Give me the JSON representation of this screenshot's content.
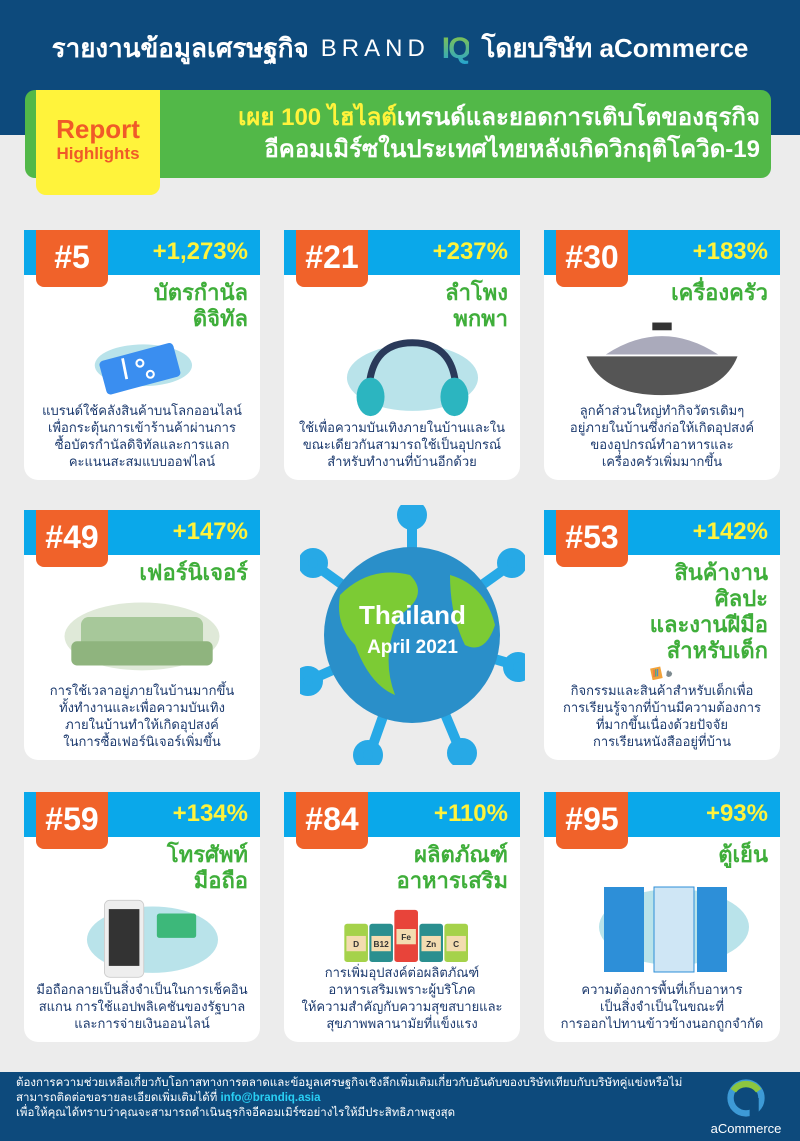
{
  "header": {
    "title_th": "รายงานข้อมูลเศรษฐกิจ",
    "brand": "BRAND",
    "brand_iq": "IQ",
    "by": "โดยบริษัท aCommerce"
  },
  "banner": {
    "report": "Report",
    "highlights": "Highlights",
    "line1_highlight": "เผย 100 ไฮไลต์",
    "line1_rest": "เทรนด์และยอดการเติบโตของธุรกิจ",
    "line2": "อีคอมเมิร์ซในประเทศไทยหลังเกิดวิกฤติโควิด-19"
  },
  "colors": {
    "navy": "#0d4a7c",
    "green": "#52b848",
    "orange": "#f0622a",
    "blue": "#0aa8ea",
    "yellow": "#fff33b"
  },
  "cards": [
    {
      "rank": "#5",
      "growth": "+1,273%",
      "title": "บัตรกำนัล\nดิจิทัล",
      "icon": "voucher-icon",
      "desc": "แบรนด์ใช้คลังสินค้าบนโลกออนไลน์\nเพื่อกระตุ้นการเข้าร้านค้าผ่านการ\nซื้อบัตรกำนัลดิจิทัลและการแลก\nคะแนนสะสมแบบออฟไลน์"
    },
    {
      "rank": "#21",
      "growth": "+237%",
      "title": "ลำโพง\nพกพา",
      "icon": "headphones-icon",
      "desc": "ใช้เพื่อความบันเทิงภายในบ้านและใน\nขณะเดียวกันสามารถใช้เป็นอุปกรณ์\nสำหรับทำงานที่บ้านอีกด้วย"
    },
    {
      "rank": "#30",
      "growth": "+183%",
      "title": "เครื่องครัว",
      "icon": "wok-icon",
      "desc": "ลูกค้าส่วนใหญ่ทำกิจวัตรเดิมๆ\nอยู่ภายในบ้านซึ่งก่อให้เกิดอุปสงค์\nของอุปกรณ์ทำอาหารและ\nเครื่องครัวเพิ่มมากขึ้น"
    },
    {
      "rank": "#49",
      "growth": "+147%",
      "title": "เฟอร์นิเจอร์",
      "icon": "sofa-icon",
      "desc": "การใช้เวลาอยู่ภายในบ้านมากขึ้น\nทั้งทำงานและเพื่อความบันเทิง\nภายในบ้านทำให้เกิดอุปสงค์\nในการซื้อเฟอร์นิเจอร์เพิ่มขึ้น"
    },
    {
      "rank": "#53",
      "growth": "+142%",
      "title": "สินค้างานศิลปะ\nและงานฝีมือ\nสำหรับเด็ก",
      "icon": "crayons-icon",
      "desc": "กิจกรรมและสินค้าสำหรับเด็กเพื่อ\nการเรียนรู้จากที่บ้านมีความต้องการ\nที่มากขึ้นเนื่องด้วยปัจจัย\nการเรียนหนังสืออยู่ที่บ้าน"
    },
    {
      "rank": "#59",
      "growth": "+134%",
      "title": "โทรศัพท์\nมือถือ",
      "icon": "smartphone-icon",
      "desc": "มือถือกลายเป็นสิ่งจำเป็นในการเช็คอิน\nสแกน การใช้แอปพลิเคชันของรัฐบาล\nและการจ่ายเงินออนไลน์"
    },
    {
      "rank": "#84",
      "growth": "+110%",
      "title": "ผลิตภัณฑ์\nอาหารเสริม",
      "icon": "supplements-icon",
      "labels": [
        "D",
        "B12",
        "Fe",
        "Zn",
        "C"
      ],
      "desc": "การเพิ่มอุปสงค์ต่อผลิตภัณฑ์\nอาหารเสริมเพราะผู้บริโภค\nให้ความสำคัญกับความสุขสบายและ\nสุขภาพพลานามัยที่แข็งแรง"
    },
    {
      "rank": "#95",
      "growth": "+93%",
      "title": "ตู้เย็น",
      "icon": "fridge-icon",
      "desc": "ความต้องการพื้นที่เก็บอาหาร\nเป็นสิ่งจำเป็นในขณะที่\nการออกไปทานข้าวข้างนอกถูกจำกัด"
    }
  ],
  "center": {
    "country": "Thailand",
    "date": "April 2021"
  },
  "footer": {
    "line1": "ต้องการความช่วยเหลือเกี่ยวกับโอกาสทางการตลาดและข้อมูลเศรษฐกิจเชิงลึกเพิ่มเติมเกี่ยวกับอันดับของบริษัทเทียบกับบริษัทคู่แข่งหรือไม่",
    "line2": "สามารถติดต่อขอรายละเอียดเพิ่มเติมได้ที่",
    "email": "info@brandiq.asia",
    "line3": "เพื่อให้คุณได้ทราบว่าคุณจะสามารถดำเนินธุรกิจอีคอมเมิร์ซอย่างไรให้มีประสิทธิภาพสูงสุด",
    "logo": "aCommerce"
  }
}
